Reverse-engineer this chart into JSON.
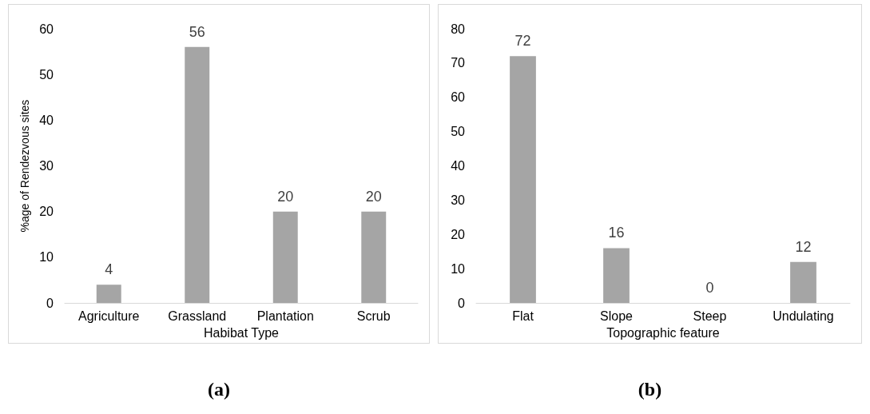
{
  "chart_data": [
    {
      "type": "bar",
      "title": "(a)",
      "xlabel": "Habibat Type",
      "ylabel": "%age of Rendezvous sites",
      "categories": [
        "Agriculture",
        "Grassland",
        "Plantation",
        "Scrub"
      ],
      "values": [
        4,
        56,
        20,
        20
      ],
      "color": "#a5a5a5",
      "ylim": [
        0,
        60
      ],
      "yticks": [
        0,
        10,
        20,
        30,
        40,
        50,
        60
      ],
      "grid": false,
      "data_labels": true
    },
    {
      "type": "bar",
      "title": "(b)",
      "xlabel": "Topographic feature",
      "categories": [
        "Flat",
        "Slope",
        "Steep",
        "Undulating"
      ],
      "values": [
        72,
        16,
        0,
        12
      ],
      "color": "#a5a5a5",
      "ylim": [
        0,
        80
      ],
      "yticks": [
        0,
        10,
        20,
        30,
        40,
        50,
        60,
        70,
        80
      ],
      "grid": false,
      "data_labels": true
    }
  ]
}
